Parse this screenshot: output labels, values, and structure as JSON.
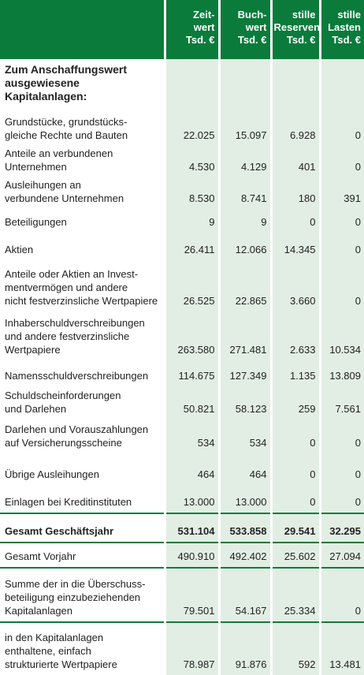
{
  "table": {
    "header": [
      [
        "Zeit-",
        "wert",
        "Tsd. €"
      ],
      [
        "Buch-",
        "wert",
        "Tsd. €"
      ],
      [
        "stille",
        "Reserven",
        "Tsd. €"
      ],
      [
        "stille",
        "Lasten",
        "Tsd. €"
      ]
    ],
    "section": [
      "Zum Anschaffungswert",
      "ausgewiesene",
      "Kapitalanlagen:"
    ],
    "rows": [
      {
        "label": [
          "Grundstücke, grundstücks-",
          "gleiche Rechte und Bauten"
        ],
        "values": [
          "22.025",
          "15.097",
          "6.928",
          "0"
        ]
      },
      {
        "label": [
          "Anteile an verbundenen",
          "Unternehmen"
        ],
        "values": [
          "4.530",
          "4.129",
          "401",
          "0"
        ]
      },
      {
        "label": [
          "Ausleihungen an",
          "verbundene Unternehmen"
        ],
        "values": [
          "8.530",
          "8.741",
          "180",
          "391"
        ]
      },
      {
        "label": [
          "Beteiligungen"
        ],
        "values": [
          "9",
          "9",
          "0",
          "0"
        ]
      },
      {
        "label": [
          "Aktien"
        ],
        "values": [
          "26.411",
          "12.066",
          "14.345",
          "0"
        ]
      },
      {
        "label": [
          "Anteile oder Aktien an Invest-",
          "mentvermögen und andere",
          "nicht festverzinsliche Wertpapiere"
        ],
        "values": [
          "26.525",
          "22.865",
          "3.660",
          "0"
        ]
      },
      {
        "label": [
          "Inhaberschuldverschreibungen",
          "und andere festverzinsliche",
          "Wertpapiere"
        ],
        "values": [
          "263.580",
          "271.481",
          "2.633",
          "10.534"
        ]
      },
      {
        "label": [
          "Namensschuldverschreibungen"
        ],
        "values": [
          "114.675",
          "127.349",
          "1.135",
          "13.809"
        ]
      },
      {
        "label": [
          "Schuldscheinforderungen",
          "und Darlehen"
        ],
        "values": [
          "50.821",
          "58.123",
          "259",
          "7.561"
        ]
      },
      {
        "label": [
          "Darlehen und Vorauszahlungen",
          "auf Versicherungsscheine"
        ],
        "values": [
          "534",
          "534",
          "0",
          "0"
        ]
      },
      {
        "label": [
          "Übrige Ausleihungen"
        ],
        "values": [
          "464",
          "464",
          "0",
          "0"
        ]
      },
      {
        "label": [
          "Einlagen bei Kreditinstituten"
        ],
        "values": [
          "13.000",
          "13.000",
          "0",
          "0"
        ]
      },
      {
        "label": [
          "Gesamt Geschäftsjahr"
        ],
        "values": [
          "531.104",
          "533.858",
          "29.541",
          "32.295"
        ],
        "bold": true
      },
      {
        "label": [
          "Gesamt Vorjahr"
        ],
        "values": [
          "490.910",
          "492.402",
          "25.602",
          "27.094"
        ]
      },
      {
        "label": [
          "Summe der in die Überschuss-",
          "beteiligung einzubeziehenden",
          "Kapitalanlagen"
        ],
        "values": [
          "79.501",
          "54.167",
          "25.334",
          "0"
        ]
      },
      {
        "label": [
          "in den Kapitalanlagen",
          "enthaltene, einfach",
          "strukturierte Wertpapiere"
        ],
        "values": [
          "78.987",
          "91.876",
          "592",
          "13.481"
        ]
      }
    ]
  }
}
